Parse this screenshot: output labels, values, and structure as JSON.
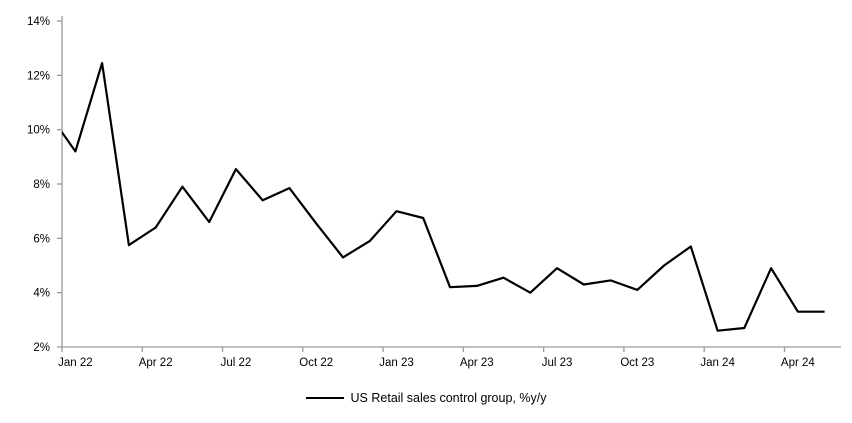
{
  "chart_data": {
    "type": "line",
    "title": "",
    "legend": "US Retail sales control group, %y/y",
    "legend_position": "bottom",
    "grid": false,
    "ylim": [
      2,
      14
    ],
    "y_tick_labels": [
      "14%",
      "12%",
      "10%",
      "8%",
      "6%",
      "4%",
      "2%"
    ],
    "y_tick_values": [
      14,
      12,
      10,
      8,
      6,
      4,
      2
    ],
    "x_tick_labels": [
      "Jan 22",
      "Apr 22",
      "Jul 22",
      "Oct 22",
      "Jan 23",
      "Apr 23",
      "Jul 23",
      "Oct 23",
      "Jan 24",
      "Apr 24"
    ],
    "x_tick_every_n_months": 3,
    "first_point_clipped_at_left_axis": true,
    "line_color": "#000000",
    "axis_color": "#9b9b9b",
    "series": [
      {
        "name": "US Retail sales control group, %y/y",
        "x": [
          "Dec 21",
          "Jan 22",
          "Feb 22",
          "Mar 22",
          "Apr 22",
          "May 22",
          "Jun 22",
          "Jul 22",
          "Aug 22",
          "Sep 22",
          "Oct 22",
          "Nov 22",
          "Dec 22",
          "Jan 23",
          "Feb 23",
          "Mar 23",
          "Apr 23",
          "May 23",
          "Jun 23",
          "Jul 23",
          "Aug 23",
          "Sep 23",
          "Oct 23",
          "Nov 23",
          "Dec 23",
          "Jan 24",
          "Feb 24",
          "Mar 24",
          "Apr 24",
          "May 24"
        ],
        "values": [
          10.6,
          9.2,
          12.45,
          5.75,
          6.4,
          7.9,
          6.6,
          8.55,
          7.4,
          7.85,
          6.55,
          5.3,
          5.9,
          7.0,
          6.75,
          4.2,
          4.25,
          4.55,
          4.0,
          4.9,
          4.3,
          4.45,
          4.1,
          5.0,
          5.7,
          2.6,
          2.7,
          4.9,
          3.3,
          3.3
        ]
      }
    ]
  }
}
